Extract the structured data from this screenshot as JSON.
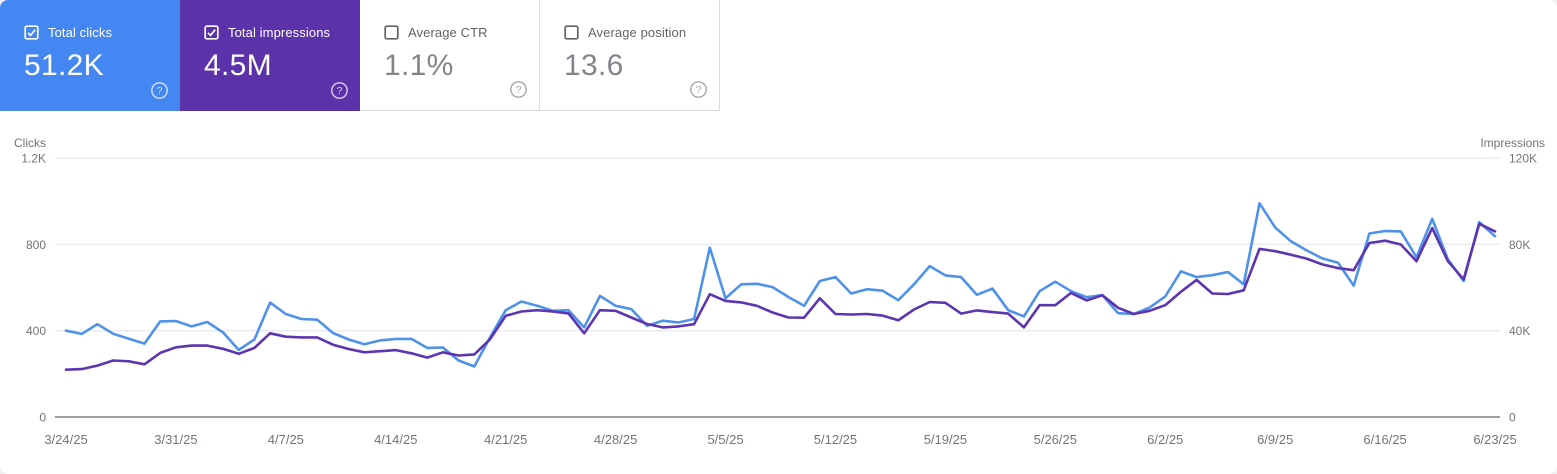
{
  "cards": [
    {
      "id": "total-clicks",
      "label": "Total clicks",
      "value": "51.2K",
      "selected": true,
      "bg": "#4487f3"
    },
    {
      "id": "total-impressions",
      "label": "Total impressions",
      "value": "4.5M",
      "selected": true,
      "bg": "#5c32aa"
    },
    {
      "id": "average-ctr",
      "label": "Average CTR",
      "value": "1.1%",
      "selected": false,
      "bg": "#ffffff"
    },
    {
      "id": "average-position",
      "label": "Average position",
      "value": "13.6",
      "selected": false,
      "bg": "#ffffff"
    }
  ],
  "icons": {
    "help": "?",
    "checkbox_checked": "checked",
    "checkbox_unchecked": "unchecked"
  },
  "chart_data": {
    "type": "line",
    "num_points": 92,
    "x_unit": "day",
    "date_range": "3/24/25 - 6/23/25",
    "tick_indices": [
      0,
      7,
      14,
      21,
      28,
      35,
      42,
      49,
      56,
      63,
      70,
      77,
      84,
      91
    ],
    "x_tick_labels": [
      "3/24/25",
      "3/31/25",
      "4/7/25",
      "4/14/25",
      "4/21/25",
      "4/28/25",
      "5/5/25",
      "5/12/25",
      "5/19/25",
      "5/26/25",
      "6/2/25",
      "6/9/25",
      "6/16/25",
      "6/23/25"
    ],
    "left_axis": {
      "title": "Clicks",
      "max": 1200,
      "tick_values": [
        0,
        400,
        800,
        1200
      ],
      "tick_labels": [
        "0",
        "400",
        "800",
        "1.2K"
      ]
    },
    "right_axis": {
      "title": "Impressions",
      "max": 120000,
      "tick_values": [
        0,
        40000,
        80000,
        120000
      ],
      "tick_labels": [
        "0",
        "40K",
        "80K",
        "120K"
      ]
    },
    "grid": true,
    "grid_color": "#e9ebee",
    "baseline_color": "#9aa0a6",
    "label_color": "#70757a",
    "series": [
      {
        "name": "Clicks",
        "axis": "left",
        "color": "#4e92ea",
        "values": [
          400,
          385,
          430,
          386,
          363,
          340,
          443,
          445,
          420,
          440,
          392,
          311,
          359,
          530,
          477,
          454,
          451,
          389,
          359,
          337,
          355,
          362,
          362,
          320,
          322,
          262,
          234,
          369,
          495,
          535,
          515,
          492,
          495,
          415,
          561,
          515,
          500,
          423,
          446,
          438,
          454,
          785,
          550,
          615,
          617,
          602,
          556,
          515,
          630,
          648,
          572,
          592,
          585,
          541,
          615,
          699,
          656,
          648,
          566,
          595,
          495,
          466,
          583,
          627,
          583,
          555,
          565,
          481,
          477,
          507,
          558,
          675,
          648,
          657,
          672,
          615,
          990,
          878,
          814,
          772,
          735,
          715,
          609,
          850,
          862,
          860,
          740,
          918,
          730,
          630,
          903,
          837
        ]
      },
      {
        "name": "Impressions",
        "axis": "right",
        "color": "#5e35b1",
        "values": [
          21900,
          22200,
          23800,
          26200,
          25800,
          24400,
          29700,
          32300,
          33100,
          33100,
          31600,
          29300,
          32000,
          38800,
          37200,
          36900,
          36900,
          33500,
          31500,
          30000,
          30500,
          31000,
          29500,
          27500,
          30000,
          28500,
          29000,
          36000,
          46900,
          48900,
          49500,
          48900,
          48000,
          38800,
          49500,
          49200,
          46100,
          43100,
          41500,
          42000,
          43000,
          56900,
          53800,
          53100,
          51500,
          48400,
          46100,
          46000,
          55000,
          47700,
          47500,
          47700,
          47000,
          44800,
          49800,
          53300,
          52900,
          47900,
          49400,
          48600,
          47900,
          41500,
          51800,
          51800,
          57500,
          54000,
          56400,
          50600,
          47700,
          49200,
          51800,
          58000,
          63500,
          57200,
          57000,
          58700,
          77900,
          76800,
          75200,
          73400,
          70700,
          69000,
          68000,
          80600,
          81700,
          79900,
          72200,
          87500,
          72200,
          63800,
          89500,
          86000
        ]
      }
    ]
  }
}
